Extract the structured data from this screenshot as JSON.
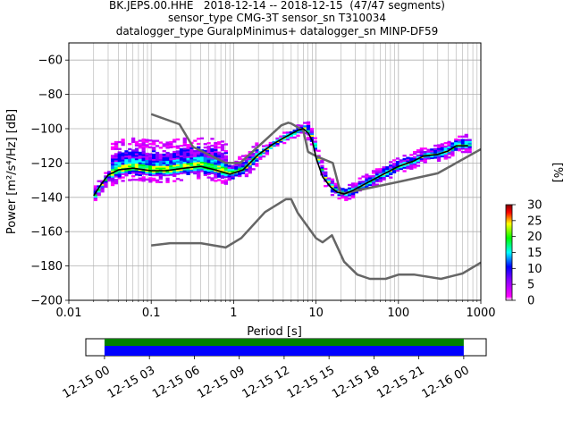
{
  "title_lines": [
    "BK.JEPS.00.HHE   2018-12-14 -- 2018-12-15  (47/47 segments)",
    "sensor_type CMG-3T sensor_sn T310034",
    "datalogger_type GuralpMinimus+ datalogger_sn MINP-DF59"
  ],
  "chart_data": [
    {
      "type": "heatmap",
      "xlabel": "Period [s]",
      "ylabel": "Power [m²/s⁴/Hz] [dB]",
      "xscale": "log",
      "xlim": [
        0.01,
        1000
      ],
      "ylim": [
        -200,
        -50
      ],
      "xticks": [
        0.01,
        0.1,
        1,
        10,
        100,
        1000
      ],
      "xtick_labels": [
        "0.01",
        "0.1",
        "1",
        "10",
        "100",
        "1000"
      ],
      "yticks": [
        -200,
        -180,
        -160,
        -140,
        -120,
        -100,
        -80,
        -60
      ],
      "ytick_labels": [
        "−200",
        "−180",
        "−160",
        "−140",
        "−120",
        "−100",
        "−80",
        "−60"
      ],
      "grid": true,
      "colorbar": {
        "label": "[%]",
        "range": [
          0,
          30
        ],
        "ticks": [
          "0",
          "5",
          "10",
          "15",
          "20",
          "25",
          "30"
        ],
        "colormap": [
          "#ffffff",
          "#ff00ff",
          "#0000ff",
          "#00ffff",
          "#00ff00",
          "#ffff00",
          "#ff0000",
          "#800000"
        ]
      },
      "series": [
        {
          "role": "NHNM",
          "color": "#666666",
          "x": [
            0.1,
            0.22,
            0.32,
            0.8,
            1.2,
            3.8,
            4.6,
            5.0,
            7.0,
            8.0,
            10.0,
            16.0,
            20.0,
            100.0,
            300.0,
            1000.0
          ],
          "y": [
            -91.5,
            -97.4,
            -110.5,
            -120.0,
            -120.0,
            -98.0,
            -96.5,
            -97.0,
            -101.0,
            -113.5,
            -116.0,
            -120.0,
            -138.0,
            -131.0,
            -126.0,
            -112.0
          ]
        },
        {
          "role": "NLNM",
          "color": "#666666",
          "x": [
            0.1,
            0.17,
            0.4,
            0.8,
            1.24,
            2.4,
            4.3,
            5.0,
            6.0,
            10.0,
            12.0,
            15.6,
            21.9,
            31.6,
            45.0,
            70.0,
            101.0,
            154.0,
            328.0,
            600.0,
            1000.0
          ],
          "y": [
            -168.0,
            -166.7,
            -166.7,
            -169.2,
            -163.7,
            -148.6,
            -141.1,
            -141.1,
            -149.0,
            -163.8,
            -166.2,
            -162.1,
            -177.5,
            -185.0,
            -187.5,
            -187.5,
            -185.0,
            -185.0,
            -187.5,
            -184.4,
            -178.0
          ]
        },
        {
          "role": "mode",
          "color": "#000000",
          "x": [
            0.02,
            0.025,
            0.03,
            0.04,
            0.06,
            0.1,
            0.15,
            0.25,
            0.4,
            0.6,
            0.9,
            1.3,
            2.0,
            3.0,
            4.0,
            5.0,
            6.0,
            7.0,
            8.0,
            9.0,
            10.0,
            12.0,
            15.0,
            18.0,
            22.0,
            28.0,
            40.0,
            60.0,
            100.0,
            150.0,
            200.0,
            300.0,
            400.0,
            500.0,
            700.0
          ],
          "y": [
            -139.0,
            -132.0,
            -127.0,
            -124.0,
            -123.0,
            -124.5,
            -124.5,
            -123.0,
            -122.0,
            -124.0,
            -126.5,
            -124.0,
            -115.0,
            -109.0,
            -105.5,
            -103.0,
            -101.0,
            -100.0,
            -102.5,
            -107.0,
            -117.0,
            -128.0,
            -134.0,
            -137.0,
            -138.0,
            -136.0,
            -132.0,
            -127.5,
            -122.0,
            -119.0,
            -116.0,
            -115.0,
            -113.0,
            -110.0,
            -110.0
          ]
        }
      ]
    },
    {
      "type": "timeline",
      "x": [
        "2018-12-15T00:00",
        "2018-12-15T03:00",
        "2018-12-15T06:00",
        "2018-12-15T09:00",
        "2018-12-15T12:00",
        "2018-12-15T15:00",
        "2018-12-15T18:00",
        "2018-12-15T21:00",
        "2018-12-16T00:00"
      ],
      "xtick_labels": [
        "12-15 00",
        "12-15 03",
        "12-15 06",
        "12-15 09",
        "12-15 12",
        "12-15 15",
        "12-15 18",
        "12-15 21",
        "12-16 00"
      ],
      "xlim": [
        "2018-12-14T22:45",
        "2018-12-16T01:30"
      ],
      "series": [
        {
          "role": "data coverage",
          "color": "#008000",
          "start": "2018-12-15T00:00",
          "end": "2018-12-16T00:00"
        },
        {
          "role": "PSD coverage",
          "color": "#0000ff",
          "start": "2018-12-15T00:00",
          "end": "2018-12-16T00:00"
        }
      ]
    }
  ]
}
